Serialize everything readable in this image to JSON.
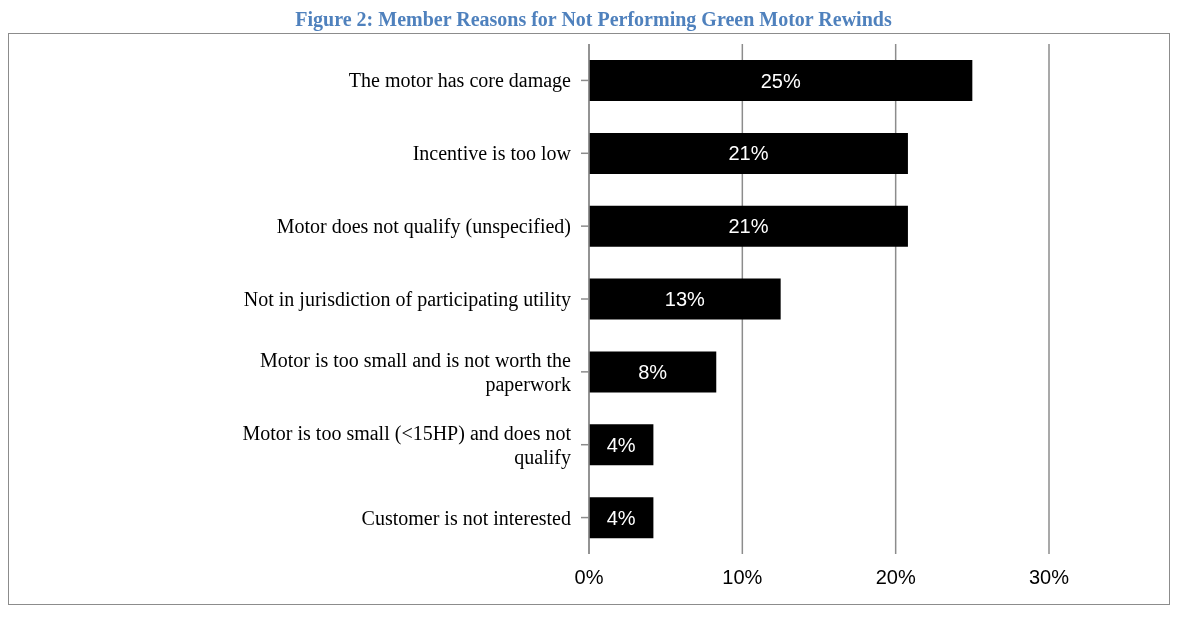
{
  "chart_data": {
    "type": "bar",
    "orientation": "horizontal",
    "title": "Figure 2: Member Reasons for Not Performing Green Motor Rewinds",
    "categories": [
      "The motor has core damage",
      "Incentive is too low",
      "Motor does not qualify (unspecified)",
      "Not in jurisdiction of participating utility",
      "Motor is too small and is not worth the paperwork",
      "Motor is too small (<15HP) and does not qualify",
      "Customer is not interested"
    ],
    "values": [
      25,
      20.8,
      20.8,
      12.5,
      8.3,
      4.2,
      4.2
    ],
    "value_labels": [
      "25%",
      "21%",
      "21%",
      "13%",
      "8%",
      "4%",
      "4%"
    ],
    "color": "#000000",
    "xlim": [
      0,
      30
    ],
    "xticks": [
      {
        "value": 0,
        "label": "0%"
      },
      {
        "value": 10,
        "label": "10%"
      },
      {
        "value": 20,
        "label": "20%"
      },
      {
        "value": 30,
        "label": "30%"
      }
    ],
    "grid": "x"
  }
}
